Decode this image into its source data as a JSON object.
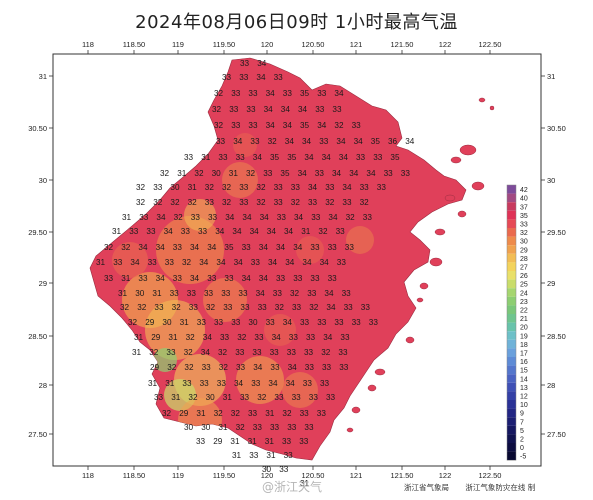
{
  "title": "2024年08月06日09时  1小时最高气温",
  "lon_ticks": [
    "118",
    "118.50",
    "119",
    "119.50",
    "120",
    "120.50",
    "121",
    "121.50",
    "122",
    "122.50"
  ],
  "lat_ticks": [
    "31",
    "30.50",
    "30",
    "29.50",
    "29",
    "28.50",
    "28",
    "27.50"
  ],
  "legend": [
    {
      "label": "42",
      "color": "#7e4b9a"
    },
    {
      "label": "40",
      "color": "#a24a82"
    },
    {
      "label": "37",
      "color": "#c83a5e"
    },
    {
      "label": "35",
      "color": "#df3257"
    },
    {
      "label": "33",
      "color": "#e64a56"
    },
    {
      "label": "32",
      "color": "#ea6a4e"
    },
    {
      "label": "30",
      "color": "#ee8b4c"
    },
    {
      "label": "29",
      "color": "#f0a24f"
    },
    {
      "label": "28",
      "color": "#f2bd55"
    },
    {
      "label": "27",
      "color": "#f3d35c"
    },
    {
      "label": "26",
      "color": "#e9e06a"
    },
    {
      "label": "25",
      "color": "#c9dd6b"
    },
    {
      "label": "24",
      "color": "#a6d670"
    },
    {
      "label": "23",
      "color": "#8dce72"
    },
    {
      "label": "22",
      "color": "#7ac77a"
    },
    {
      "label": "21",
      "color": "#6fc58f"
    },
    {
      "label": "20",
      "color": "#68c3ab"
    },
    {
      "label": "19",
      "color": "#6dc0c8"
    },
    {
      "label": "18",
      "color": "#6fb2d8"
    },
    {
      "label": "17",
      "color": "#6aa0dc"
    },
    {
      "label": "16",
      "color": "#5e8bd6"
    },
    {
      "label": "15",
      "color": "#5476cc"
    },
    {
      "label": "14",
      "color": "#4a62c2"
    },
    {
      "label": "13",
      "color": "#3f50b5"
    },
    {
      "label": "12",
      "color": "#3440a6"
    },
    {
      "label": "10",
      "color": "#2a3196"
    },
    {
      "label": "9",
      "color": "#222684"
    },
    {
      "label": "7",
      "color": "#1b1e72"
    },
    {
      "label": "5",
      "color": "#151760"
    },
    {
      "label": "2",
      "color": "#10124f"
    },
    {
      "label": "0",
      "color": "#0c0d40"
    },
    {
      "label": "-5",
      "color": "#080931"
    }
  ],
  "station_rows": [
    [
      "33",
      "34"
    ],
    [
      "33",
      "33",
      "34",
      "33"
    ],
    [
      "32",
      "33",
      "33",
      "34",
      "33",
      "35",
      "33",
      "34"
    ],
    [
      "32",
      "33",
      "33",
      "34",
      "34",
      "34",
      "33",
      "33"
    ],
    [
      "32",
      "33",
      "33",
      "34",
      "34",
      "35",
      "34",
      "32",
      "33"
    ],
    [
      "33",
      "34",
      "33",
      "32",
      "34",
      "34",
      "33",
      "34",
      "34",
      "35",
      "36",
      "34"
    ],
    [
      "33",
      "31",
      "33",
      "33",
      "34",
      "35",
      "35",
      "34",
      "34",
      "34",
      "33",
      "33",
      "35"
    ],
    [
      "32",
      "31",
      "32",
      "30",
      "31",
      "32",
      "33",
      "35",
      "34",
      "33",
      "34",
      "34",
      "34",
      "33",
      "33"
    ],
    [
      "32",
      "33",
      "30",
      "31",
      "32",
      "32",
      "33",
      "32",
      "33",
      "33",
      "34",
      "33",
      "34",
      "33",
      "33"
    ],
    [
      "32",
      "32",
      "32",
      "32",
      "33",
      "32",
      "33",
      "32",
      "33",
      "32",
      "33",
      "32",
      "33",
      "32"
    ],
    [
      "31",
      "33",
      "34",
      "32",
      "33",
      "33",
      "34",
      "34",
      "34",
      "33",
      "34",
      "33",
      "34",
      "32",
      "33"
    ],
    [
      "31",
      "33",
      "33",
      "34",
      "33",
      "33",
      "34",
      "34",
      "34",
      "34",
      "34",
      "31",
      "32",
      "33"
    ],
    [
      "32",
      "32",
      "34",
      "34",
      "33",
      "34",
      "34",
      "35",
      "33",
      "34",
      "34",
      "34",
      "33",
      "33",
      "33"
    ],
    [
      "31",
      "33",
      "34",
      "33",
      "33",
      "32",
      "34",
      "34",
      "34",
      "33",
      "34",
      "34",
      "34",
      "34",
      "33"
    ],
    [
      "33",
      "31",
      "33",
      "34",
      "33",
      "34",
      "33",
      "33",
      "34",
      "34",
      "33",
      "33",
      "33",
      "33"
    ],
    [
      "31",
      "30",
      "31",
      "33",
      "33",
      "33",
      "33",
      "33",
      "34",
      "33",
      "32",
      "33",
      "34",
      "33"
    ],
    [
      "32",
      "32",
      "33",
      "32",
      "33",
      "32",
      "33",
      "33",
      "33",
      "32",
      "33",
      "32",
      "34",
      "33",
      "33"
    ],
    [
      "32",
      "29",
      "30",
      "31",
      "33",
      "33",
      "33",
      "30",
      "33",
      "34",
      "33",
      "33",
      "33",
      "33",
      "33"
    ],
    [
      "31",
      "29",
      "31",
      "32",
      "34",
      "33",
      "32",
      "33",
      "34",
      "33",
      "33",
      "34",
      "33"
    ],
    [
      "31",
      "32",
      "33",
      "32",
      "34",
      "32",
      "33",
      "33",
      "33",
      "33",
      "33",
      "32",
      "33"
    ],
    [
      "29",
      "32",
      "32",
      "33",
      "32",
      "33",
      "34",
      "33",
      "34",
      "33",
      "33",
      "33"
    ],
    [
      "31",
      "31",
      "33",
      "33",
      "33",
      "34",
      "33",
      "34",
      "34",
      "33",
      "33"
    ],
    [
      "33",
      "31",
      "32",
      "30",
      "31",
      "33",
      "32",
      "33",
      "33",
      "33",
      "33"
    ],
    [
      "32",
      "29",
      "31",
      "32",
      "32",
      "33",
      "31",
      "32",
      "33",
      "33"
    ],
    [
      "30",
      "30",
      "31",
      "32",
      "33",
      "33",
      "33",
      "33"
    ],
    [
      "33",
      "29",
      "31",
      "31",
      "31",
      "33",
      "33"
    ],
    [
      "31",
      "33",
      "31",
      "33"
    ],
    [
      "30",
      "33"
    ],
    [
      "31"
    ]
  ],
  "footer": {
    "agency": "浙江省气象局",
    "producer": "浙江气象防灾在线  制"
  },
  "watermark": "@浙江天气"
}
